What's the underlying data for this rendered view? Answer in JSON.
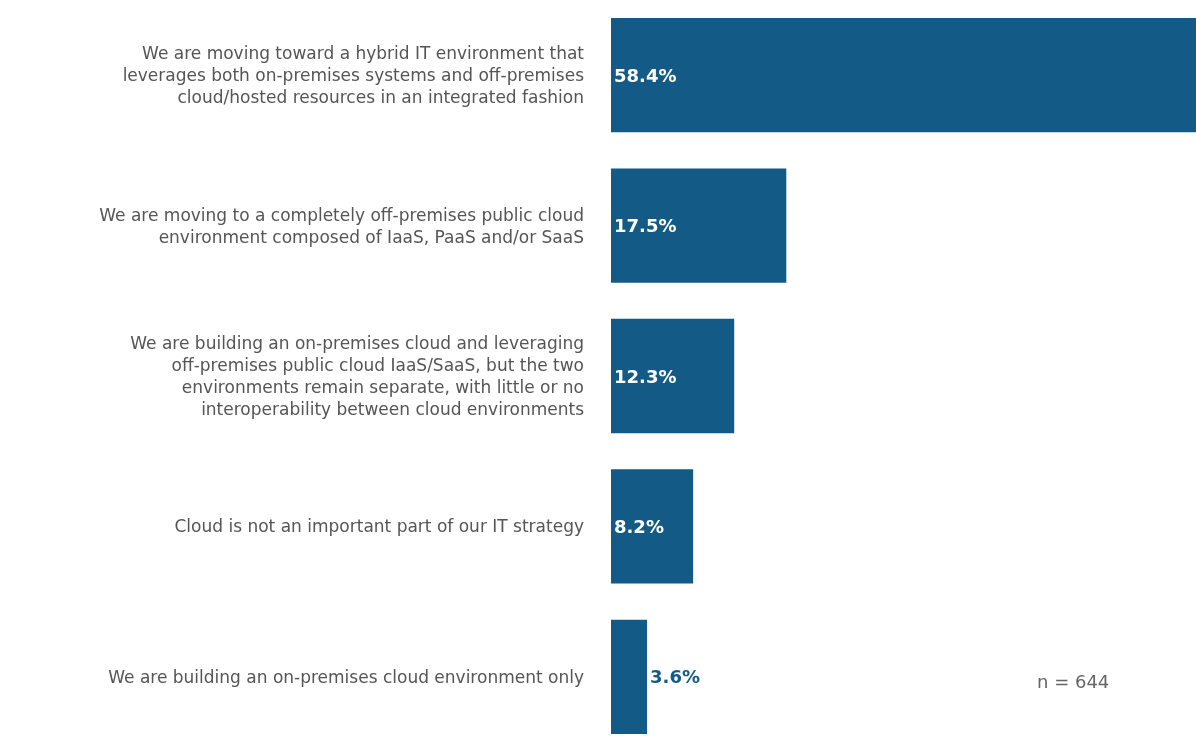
{
  "chart_data": {
    "type": "bar",
    "orientation": "horizontal",
    "categories": [
      "We are moving toward a hybrid IT environment that leverages both on-premises systems and off-premises cloud/hosted resources in an integrated fashion",
      "We are moving to a completely off-premises public cloud environment composed of IaaS, PaaS and/or SaaS",
      "We are building an on-premises cloud and leveraging off-premises public cloud IaaS/SaaS, but the two environments remain separate, with little or no interoperability between cloud environments",
      "Cloud is not an important part of our IT strategy",
      "We are building an on-premises cloud environment only"
    ],
    "values": [
      58.4,
      17.5,
      12.3,
      8.2,
      3.6
    ],
    "value_labels": [
      "58.4%",
      "17.5%",
      "12.3%",
      "8.2%",
      "3.6%"
    ],
    "color": "#135b86",
    "annotations": [
      "n = 644"
    ]
  }
}
